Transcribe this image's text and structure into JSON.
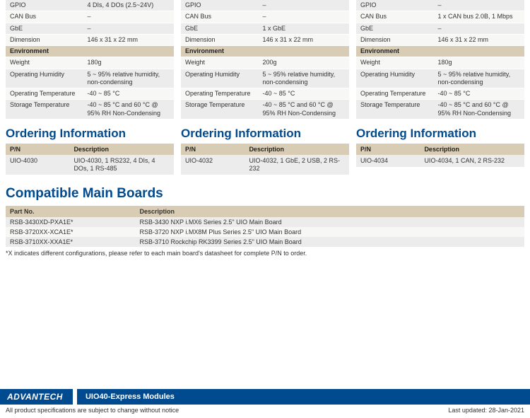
{
  "cols": [
    {
      "specs": [
        {
          "k": "GPIO",
          "v": "4 DIs, 4 DOs (2.5~24V)",
          "cls": "odd"
        },
        {
          "k": "CAN Bus",
          "v": "–",
          "cls": "even"
        },
        {
          "k": "GbE",
          "v": "–",
          "cls": "odd"
        },
        {
          "k": "Dimension",
          "v": "146 x 31 x 22 mm",
          "cls": "even"
        }
      ],
      "env_label": "Environment",
      "env": [
        {
          "k": "Weight",
          "v": "180g",
          "cls": "even"
        },
        {
          "k": "Operating Humidity",
          "v": "5 ~ 95% relative humidity, non-condensing",
          "cls": "odd"
        },
        {
          "k": "Operating Temperature",
          "v": "-40 ~ 85 °C",
          "cls": "even"
        },
        {
          "k": "Storage Temperature",
          "v": "-40 ~ 85 °C and 60 °C @ 95% RH Non-Condensing",
          "cls": "odd"
        }
      ],
      "order_title": "Ordering Information",
      "pn_h": "P/N",
      "desc_h": "Description",
      "pn": "UIO-4030",
      "desc": "UIO-4030, 1 RS232, 4 DIs, 4 DOs, 1 RS-485"
    },
    {
      "specs": [
        {
          "k": "GPIO",
          "v": "–",
          "cls": "odd"
        },
        {
          "k": "CAN Bus",
          "v": "–",
          "cls": "even"
        },
        {
          "k": "GbE",
          "v": "1 x GbE",
          "cls": "odd"
        },
        {
          "k": "Dimension",
          "v": "146 x 31 x 22 mm",
          "cls": "even"
        }
      ],
      "env_label": "Environment",
      "env": [
        {
          "k": "Weight",
          "v": "200g",
          "cls": "even"
        },
        {
          "k": "Operating Humidity",
          "v": "5 ~ 95% relative humidity, non-condensing",
          "cls": "odd"
        },
        {
          "k": "Operating Temperature",
          "v": "-40 ~ 85 °C",
          "cls": "even"
        },
        {
          "k": "Storage Temperature",
          "v": "-40 ~ 85 °C and 60 °C @ 95% RH Non-Condensing",
          "cls": "odd"
        }
      ],
      "order_title": "Ordering Information",
      "pn_h": "P/N",
      "desc_h": "Description",
      "pn": "UIO-4032",
      "desc": "UIO-4032, 1 GbE, 2 USB, 2 RS-232"
    },
    {
      "specs": [
        {
          "k": "GPIO",
          "v": "–",
          "cls": "odd"
        },
        {
          "k": "CAN Bus",
          "v": "1 x CAN bus 2.0B, 1 Mbps",
          "cls": "even"
        },
        {
          "k": "GbE",
          "v": "–",
          "cls": "odd"
        },
        {
          "k": "Dimension",
          "v": "146 x 31 x 22 mm",
          "cls": "even"
        }
      ],
      "env_label": "Environment",
      "env": [
        {
          "k": "Weight",
          "v": "180g",
          "cls": "even"
        },
        {
          "k": "Operating Humidity",
          "v": "5 ~ 95% relative humidity, non-condensing",
          "cls": "odd"
        },
        {
          "k": "Operating Temperature",
          "v": "-40 ~ 85 °C",
          "cls": "even"
        },
        {
          "k": "Storage Temperature",
          "v": "-40 ~ 85 °C and 60 °C @ 95% RH Non-Condensing",
          "cls": "odd"
        }
      ],
      "order_title": "Ordering Information",
      "pn_h": "P/N",
      "desc_h": "Description",
      "pn": "UIO-4034",
      "desc": "UIO-4034, 1 CAN, 2 RS-232"
    }
  ],
  "compat_title": "Compatible Main Boards",
  "compat_h1": "Part No.",
  "compat_h2": "Description",
  "compat_rows": [
    {
      "pn": "RSB-3430XD-PXA1E*",
      "d": "RSB-3430 NXP i.MX6 Series 2.5\" UIO Main Board",
      "cls": "odd"
    },
    {
      "pn": "RSB-3720XX-XCA1E*",
      "d": "RSB-3720 NXP i.MX8M Plus Series 2.5\" UIO Main Board",
      "cls": "even"
    },
    {
      "pn": "RSB-3710XX-XXA1E*",
      "d": "RSB-3710 Rockchip RK3399 Series 2.5\" UIO Main Board",
      "cls": "odd"
    }
  ],
  "note": "*X indicates different configurations, please refer to each main board's datasheet for complete P/N to order.",
  "brand": "ADVANTECH",
  "subtitle": "UIO40-Express Modules",
  "disclaimer": "All product specifications are subject to change without notice",
  "updated": "Last updated: 28-Jan-2021"
}
